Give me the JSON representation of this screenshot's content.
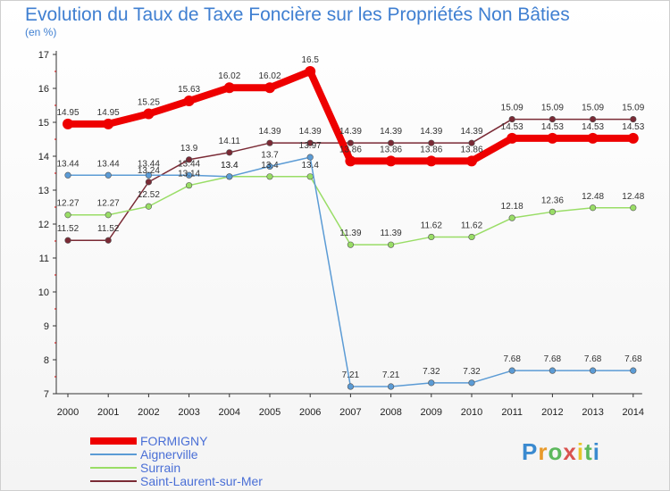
{
  "chart_data": {
    "type": "line",
    "title": "Evolution du Taux de Taxe Foncière sur les Propriétés Non Bâties",
    "subtitle": "(en %)",
    "categories": [
      "2000",
      "2001",
      "2002",
      "2003",
      "2004",
      "2005",
      "2006",
      "2007",
      "2008",
      "2009",
      "2010",
      "2011",
      "2012",
      "2013",
      "2014"
    ],
    "ylim": [
      7,
      17
    ],
    "yticks": [
      7,
      8,
      9,
      10,
      11,
      12,
      13,
      14,
      15,
      16,
      17
    ],
    "grid": false,
    "series": [
      {
        "name": "FORMIGNY",
        "color": "#ee0000",
        "values": [
          14.95,
          14.95,
          15.25,
          15.63,
          16.02,
          16.02,
          16.5,
          13.86,
          13.86,
          13.86,
          13.86,
          14.53,
          14.53,
          14.53,
          14.53
        ],
        "labels": [
          "14.95",
          "14.95",
          "15.25",
          "15.63",
          "16.02",
          "16.02",
          "16.5",
          "13.86",
          "13.86",
          "13.86",
          "13.86",
          "14.53",
          "14.53",
          "14.53",
          "14.53"
        ]
      },
      {
        "name": "Aignerville",
        "color": "#5b9bd5",
        "values": [
          13.44,
          13.44,
          13.44,
          13.44,
          13.4,
          13.7,
          13.97,
          7.21,
          7.21,
          7.32,
          7.32,
          7.68,
          7.68,
          7.68,
          7.68
        ],
        "labels": [
          "13.44",
          "13.44",
          "13.44",
          "13.44",
          "13.4",
          "13.7",
          "13.97",
          "7.21",
          "7.21",
          "7.32",
          "7.32",
          "7.68",
          "7.68",
          "7.68",
          "7.68"
        ]
      },
      {
        "name": "Surrain",
        "color": "#99dd66",
        "values": [
          12.27,
          12.27,
          12.52,
          13.14,
          13.4,
          13.4,
          13.4,
          11.39,
          11.39,
          11.62,
          11.62,
          12.18,
          12.36,
          12.48,
          12.48
        ],
        "labels": [
          "12.27",
          "12.27",
          "12.52",
          "13.14",
          "13.4",
          "13.4",
          "13.4",
          "11.39",
          "11.39",
          "11.62",
          "11.62",
          "12.18",
          "12.36",
          "12.48",
          "12.48"
        ]
      },
      {
        "name": "Saint-Laurent-sur-Mer",
        "color": "#7a2a35",
        "values": [
          11.52,
          11.52,
          13.24,
          13.9,
          14.11,
          14.39,
          14.39,
          14.39,
          14.39,
          14.39,
          14.39,
          15.09,
          15.09,
          15.09,
          15.09
        ],
        "labels": [
          "11.52",
          "11.52",
          "13.24",
          "13.9",
          "14.11",
          "14.39",
          "14.39",
          "14.39",
          "14.39",
          "14.39",
          "14.39",
          "15.09",
          "15.09",
          "15.09",
          "15.09"
        ]
      }
    ]
  },
  "legend": {
    "items": [
      {
        "label": "FORMIGNY",
        "color": "#ee0000"
      },
      {
        "label": "Aignerville",
        "color": "#5b9bd5"
      },
      {
        "label": "Surrain",
        "color": "#99dd66"
      },
      {
        "label": "Saint-Laurent-sur-Mer",
        "color": "#7a2a35"
      }
    ]
  },
  "brand": {
    "letters": [
      "P",
      "r",
      "o",
      "x",
      "i",
      "t",
      "i"
    ],
    "colors": [
      "#3a8ad0",
      "#e89a2a",
      "#5cb85c",
      "#d9534f",
      "#e8c52a",
      "#5cb85c",
      "#3a8ad0"
    ]
  }
}
